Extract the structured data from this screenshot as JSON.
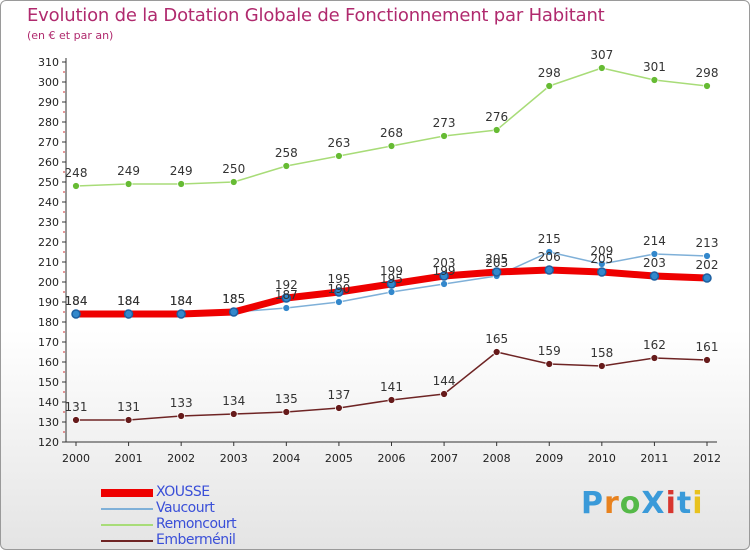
{
  "colors": {
    "title": "#b02a6e",
    "legend_text": "#3a4fd8",
    "axis": "#333333",
    "grid": "#e6e6e6"
  },
  "brand": {
    "text": "ProXiti",
    "letter_colors": [
      "#3a9ad9",
      "#e8821e",
      "#55b948",
      "#3a9ad9",
      "#d8362f",
      "#3a9ad9",
      "#e8c21e"
    ]
  },
  "chart_data": {
    "type": "line",
    "title": "Evolution de la Dotation Globale de Fonctionnement par Habitant",
    "subtitle": "(en € et par an)",
    "xlabel": "",
    "ylabel": "",
    "x": [
      "2000",
      "2001",
      "2002",
      "2003",
      "2004",
      "2005",
      "2006",
      "2007",
      "2008",
      "2009",
      "2010",
      "2011",
      "2012"
    ],
    "ylim": [
      120,
      310
    ],
    "yticks": [
      120,
      130,
      140,
      150,
      160,
      170,
      180,
      190,
      200,
      210,
      220,
      230,
      240,
      250,
      260,
      270,
      280,
      290,
      300,
      310
    ],
    "grid": false,
    "legend": "bottom-left",
    "series": [
      {
        "name": "XOUSSE",
        "color": "#ee0000",
        "point_color": "#3388cc",
        "line_width": 7,
        "marker_r": 4,
        "values": [
          184,
          184,
          184,
          185,
          192,
          195,
          199,
          203,
          205,
          206,
          205,
          203,
          202
        ]
      },
      {
        "name": "Vaucourt",
        "color": "#7fb0d8",
        "point_color": "#3388cc",
        "line_width": 1.5,
        "marker_r": 3.5,
        "values": [
          184,
          184,
          184,
          185,
          187,
          190,
          195,
          199,
          203,
          215,
          209,
          214,
          213
        ]
      },
      {
        "name": "Remoncourt",
        "color": "#a8dc78",
        "point_color": "#66bb33",
        "line_width": 1.5,
        "marker_r": 3.5,
        "values": [
          248,
          249,
          249,
          250,
          258,
          263,
          268,
          273,
          276,
          298,
          307,
          301,
          298
        ]
      },
      {
        "name": "Emberménil",
        "color": "#6e2424",
        "point_color": "#661a1a",
        "line_width": 1.5,
        "marker_r": 3.5,
        "values": [
          131,
          131,
          133,
          134,
          135,
          137,
          141,
          144,
          165,
          159,
          158,
          162,
          161
        ]
      }
    ]
  }
}
